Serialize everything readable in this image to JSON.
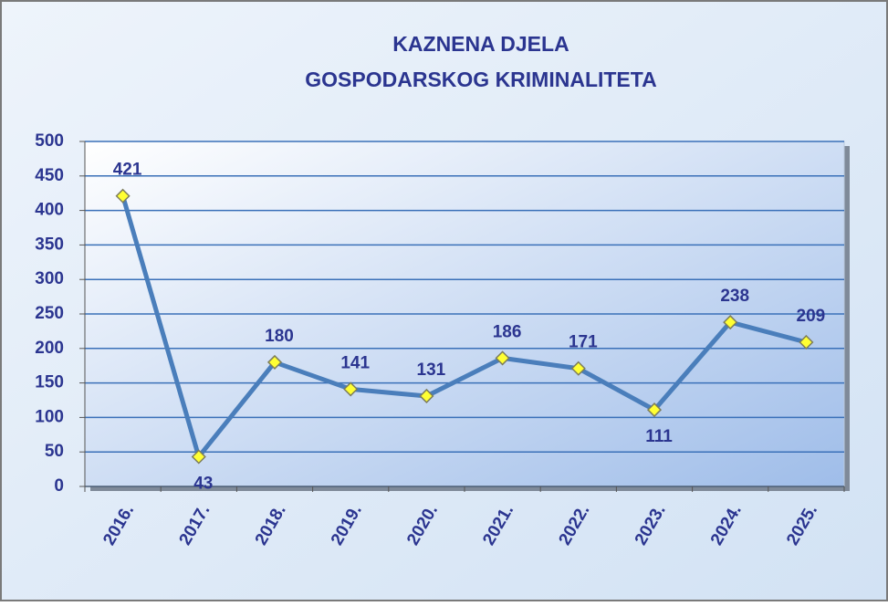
{
  "chart_data": {
    "type": "line",
    "title": [
      "KAZNENA DJELA",
      "GOSPODARSKOG KRIMINALITETA"
    ],
    "categories": [
      "2016.",
      "2017.",
      "2018.",
      "2019.",
      "2020.",
      "2021.",
      "2022.",
      "2023.",
      "2024.",
      "2025."
    ],
    "values": [
      421,
      43,
      180,
      141,
      131,
      186,
      171,
      111,
      238,
      209
    ],
    "color": "#4a7ebb",
    "marker_color": "#ffff33",
    "ylim": [
      0,
      500
    ],
    "yticks": [
      0,
      50,
      100,
      150,
      200,
      250,
      300,
      350,
      400,
      450,
      500
    ],
    "grid": true
  }
}
